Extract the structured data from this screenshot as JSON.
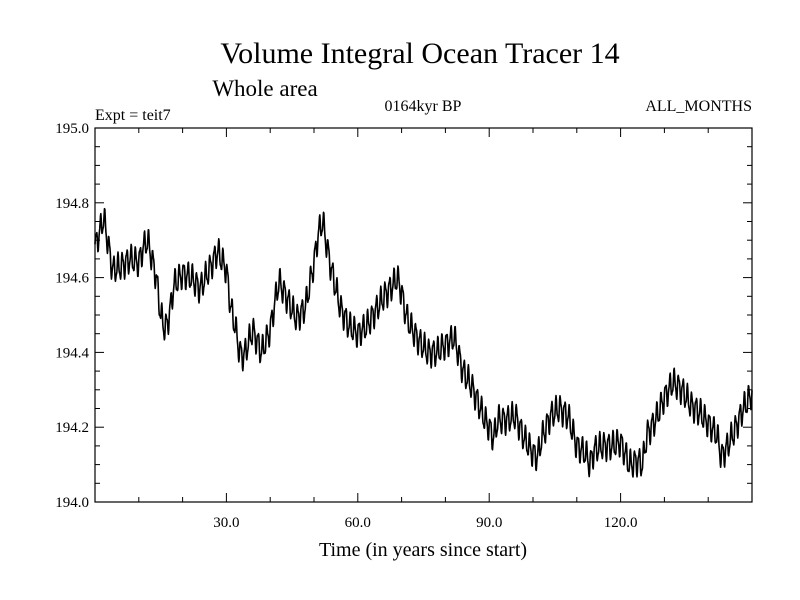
{
  "title": "Volume Integral Ocean Tracer 14",
  "subtitle": "Whole area",
  "experiment": "Expt = teit7",
  "period": "0164kyr BP",
  "months": "ALL_MONTHS",
  "xlabel": "Time (in years since start)",
  "chart_data": {
    "type": "line",
    "title": "Volume Integral Ocean Tracer 14",
    "xlabel": "Time (in years since start)",
    "ylabel": "",
    "xlim": [
      0,
      150
    ],
    "ylim": [
      194.0,
      195.0
    ],
    "x_ticks": [
      30.0,
      60.0,
      90.0,
      120.0
    ],
    "x_tick_labels": [
      "30.0",
      "60.0",
      "90.0",
      "120.0"
    ],
    "y_ticks": [
      194.0,
      194.2,
      194.4,
      194.6,
      194.8,
      195.0
    ],
    "y_tick_labels": [
      "194.0",
      "194.2",
      "194.4",
      "194.6",
      "194.8",
      "195.0"
    ],
    "grid": false,
    "line_color": "#000000",
    "series": [
      {
        "x": [
          0,
          1,
          2,
          4,
          6,
          8,
          10,
          11,
          12,
          14,
          15,
          16,
          17,
          18,
          20,
          22,
          24,
          26,
          28,
          30,
          31,
          32,
          33,
          34,
          36,
          38,
          40,
          41,
          42,
          44,
          46,
          48,
          50,
          51,
          52,
          53,
          54,
          56,
          58,
          60,
          62,
          64,
          66,
          68,
          69,
          70,
          71,
          72,
          74,
          76,
          78,
          80,
          82,
          84,
          86,
          87,
          88,
          89,
          90,
          91,
          92,
          94,
          96,
          98,
          100,
          101,
          102,
          104,
          106,
          108,
          110,
          112,
          113,
          114,
          116,
          118,
          120,
          122,
          124,
          125,
          126,
          128,
          130,
          132,
          134,
          136,
          138,
          140,
          142,
          143,
          144,
          146,
          148,
          150
        ],
        "y": [
          194.68,
          194.72,
          194.76,
          194.62,
          194.63,
          194.65,
          194.64,
          194.68,
          194.7,
          194.6,
          194.5,
          194.46,
          194.5,
          194.58,
          194.61,
          194.6,
          194.57,
          194.62,
          194.67,
          194.62,
          194.52,
          194.47,
          194.4,
          194.39,
          194.46,
          194.4,
          194.46,
          194.53,
          194.59,
          194.54,
          194.49,
          194.52,
          194.64,
          194.72,
          194.75,
          194.68,
          194.62,
          194.52,
          194.47,
          194.45,
          194.47,
          194.51,
          194.55,
          194.58,
          194.6,
          194.56,
          194.5,
          194.47,
          194.43,
          194.4,
          194.4,
          194.42,
          194.44,
          194.35,
          194.31,
          194.28,
          194.25,
          194.22,
          194.2,
          194.17,
          194.22,
          194.22,
          194.23,
          194.17,
          194.13,
          194.12,
          194.17,
          194.23,
          194.25,
          194.23,
          194.15,
          194.13,
          194.1,
          194.14,
          194.15,
          194.15,
          194.16,
          194.1,
          194.11,
          194.1,
          194.18,
          194.22,
          194.28,
          194.32,
          194.3,
          194.26,
          194.24,
          194.21,
          194.18,
          194.12,
          194.14,
          194.19,
          194.25,
          194.29
        ]
      }
    ]
  }
}
